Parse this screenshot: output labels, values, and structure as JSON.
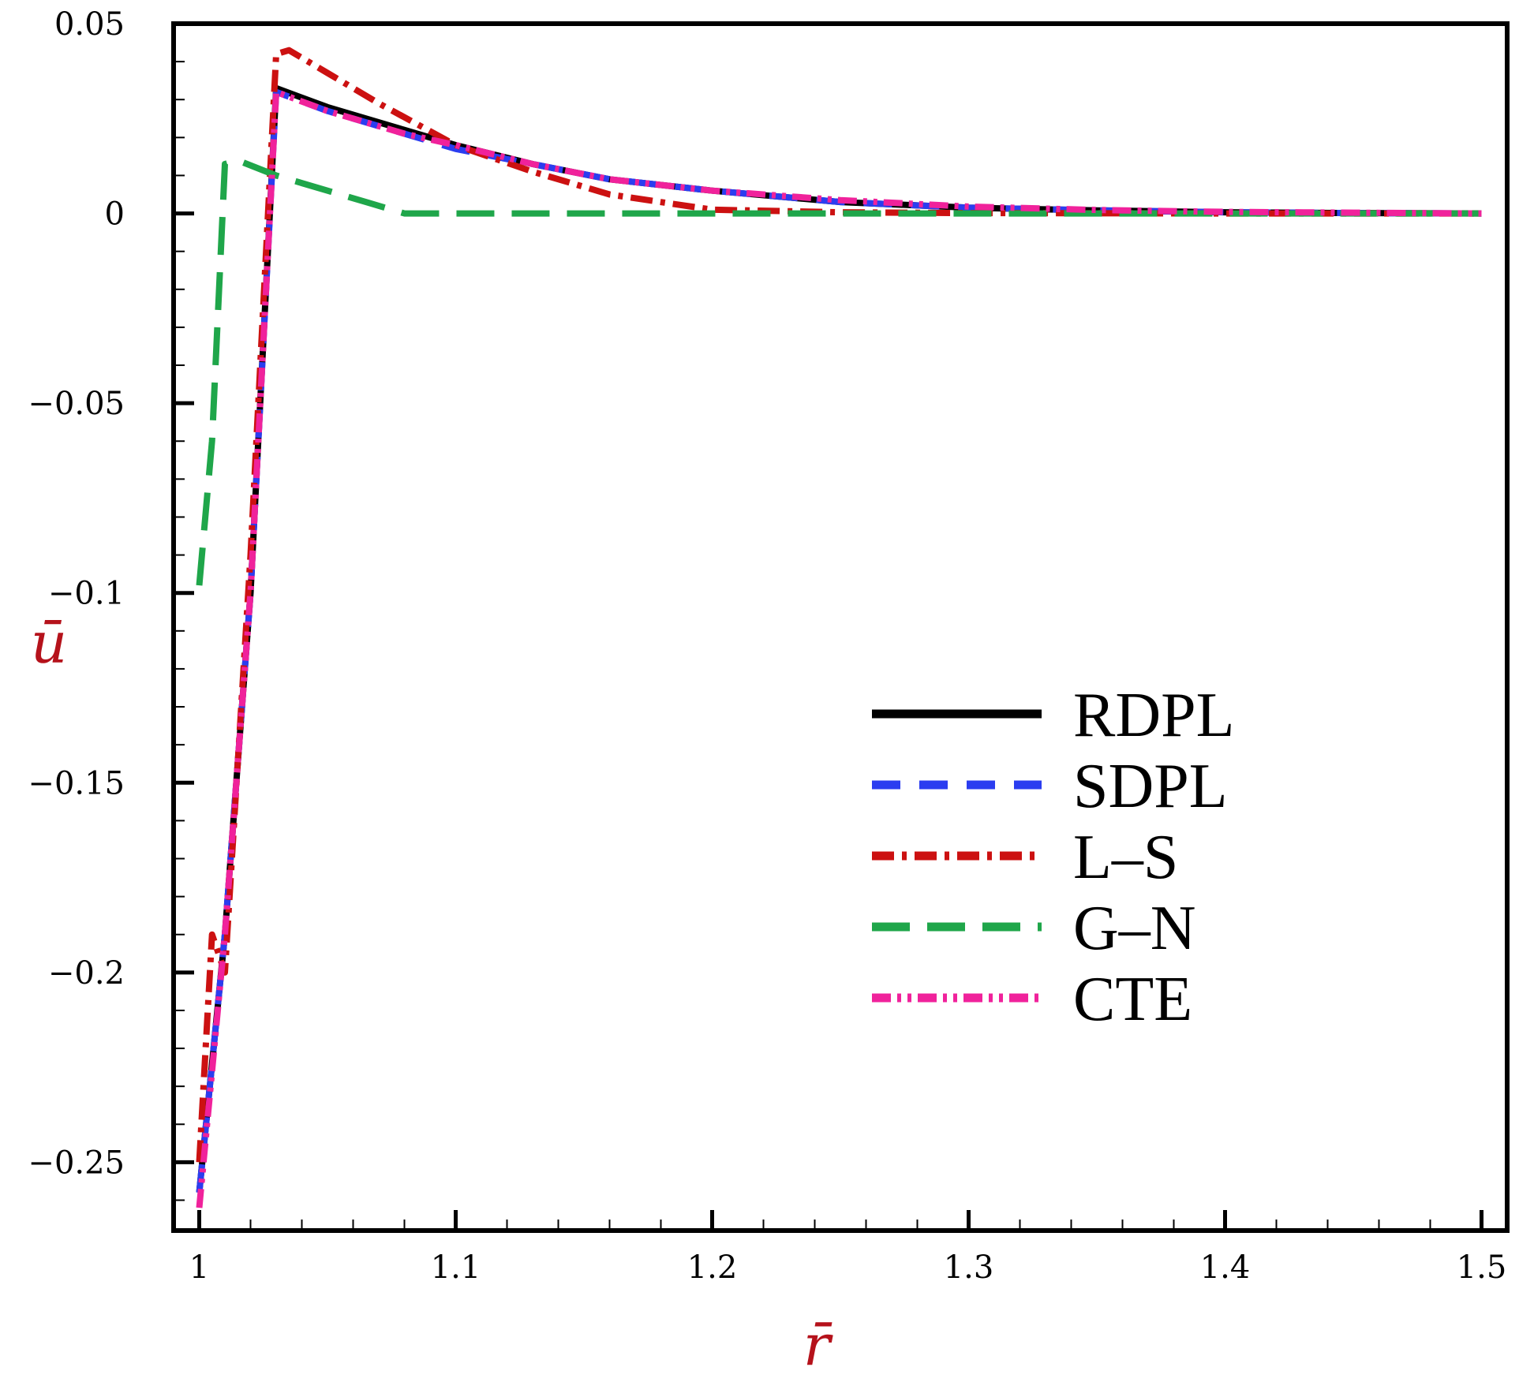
{
  "chart_data": {
    "type": "line",
    "title": "",
    "xlabel": "r̄",
    "ylabel": "ū",
    "xlim": [
      0.99,
      1.51
    ],
    "ylim": [
      -0.268,
      0.05
    ],
    "xticks": [
      1,
      1.1,
      1.2,
      1.3,
      1.4,
      1.5
    ],
    "xtick_labels": [
      "1",
      "1.1",
      "1.2",
      "1.3",
      "1.4",
      "1.5"
    ],
    "yticks": [
      0.05,
      0,
      -0.05,
      -0.1,
      -0.15,
      -0.2,
      -0.25
    ],
    "ytick_labels": [
      "0.05",
      "0",
      "−0.05",
      "−0.1",
      "−0.15",
      "−0.2",
      "−0.25"
    ],
    "grid": false,
    "legend_position": "center-right",
    "series": [
      {
        "name": "RDPL",
        "color": "#000000",
        "dash": "solid",
        "x": [
          1.0,
          1.01,
          1.02,
          1.03,
          1.05,
          1.08,
          1.1,
          1.13,
          1.16,
          1.2,
          1.25,
          1.3,
          1.35,
          1.4,
          1.45,
          1.5
        ],
        "y": [
          -0.258,
          -0.19,
          -0.1,
          0.033,
          0.028,
          0.022,
          0.018,
          0.013,
          0.009,
          0.006,
          0.003,
          0.0015,
          0.0008,
          0.0003,
          0.0001,
          0.0
        ]
      },
      {
        "name": "SDPL",
        "color": "#2b3df0",
        "dash": "dashed",
        "x": [
          1.0,
          1.01,
          1.02,
          1.03,
          1.05,
          1.08,
          1.1,
          1.13,
          1.16,
          1.2,
          1.25,
          1.3,
          1.35,
          1.4,
          1.45,
          1.5
        ],
        "y": [
          -0.258,
          -0.19,
          -0.1,
          0.032,
          0.027,
          0.021,
          0.017,
          0.013,
          0.009,
          0.006,
          0.003,
          0.0015,
          0.0008,
          0.0003,
          0.0001,
          0.0
        ]
      },
      {
        "name": "L–S",
        "color": "#cc1111",
        "dash": "dashdot",
        "x": [
          1.0,
          1.005,
          1.01,
          1.02,
          1.03,
          1.035,
          1.05,
          1.07,
          1.1,
          1.13,
          1.16,
          1.2,
          1.25,
          1.3,
          1.4,
          1.5
        ],
        "y": [
          -0.25,
          -0.19,
          -0.2,
          -0.09,
          0.042,
          0.043,
          0.037,
          0.029,
          0.018,
          0.011,
          0.005,
          0.001,
          0.0003,
          0.0001,
          0.0,
          0.0
        ]
      },
      {
        "name": "G–N",
        "color": "#1fa64a",
        "dash": "longdash",
        "x": [
          1.0,
          1.005,
          1.01,
          1.015,
          1.03,
          1.05,
          1.065,
          1.08,
          1.1,
          1.2,
          1.3,
          1.4,
          1.5
        ],
        "y": [
          -0.098,
          -0.06,
          0.013,
          0.014,
          0.01,
          0.006,
          0.003,
          0.0,
          0.0,
          0.0,
          0.0,
          0.0,
          0.0
        ]
      },
      {
        "name": "CTE",
        "color": "#f0229b",
        "dash": "dashdotdot",
        "x": [
          1.0,
          1.01,
          1.02,
          1.03,
          1.05,
          1.08,
          1.1,
          1.13,
          1.16,
          1.2,
          1.25,
          1.3,
          1.35,
          1.4,
          1.45,
          1.5
        ],
        "y": [
          -0.262,
          -0.19,
          -0.1,
          0.032,
          0.027,
          0.021,
          0.018,
          0.013,
          0.009,
          0.006,
          0.0035,
          0.0018,
          0.0009,
          0.0004,
          0.0002,
          0.0
        ]
      }
    ]
  }
}
